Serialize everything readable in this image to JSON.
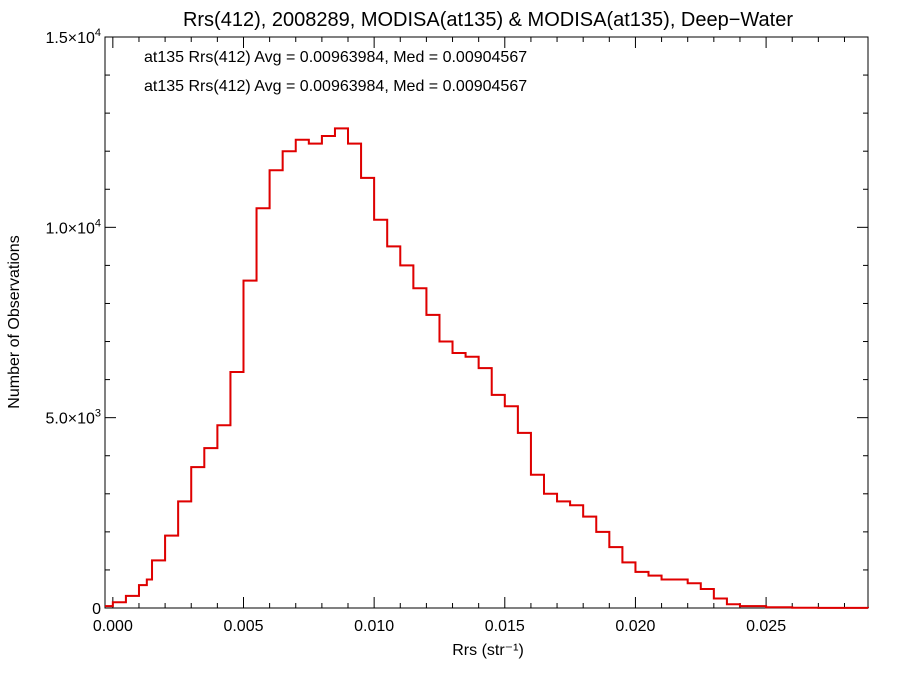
{
  "chart_data": {
    "type": "line",
    "title": "Rrs(412), 2008289, MODISA(at135) & MODISA(at135), Deep−Water",
    "xlabel": "Rrs (str⁻¹)",
    "ylabel": "Number of Observations",
    "xlim": [
      -0.0003,
      0.0289
    ],
    "ylim": [
      0,
      15000
    ],
    "x_ticks": [
      0.0,
      0.005,
      0.01,
      0.015,
      0.02,
      0.025
    ],
    "x_tick_labels": [
      "0.000",
      "0.005",
      "0.010",
      "0.015",
      "0.020",
      "0.025"
    ],
    "y_ticks": [
      0,
      5000,
      10000,
      15000
    ],
    "y_tick_labels": [
      {
        "mant": "0",
        "exp": ""
      },
      {
        "mant": "5.0×10",
        "exp": "3"
      },
      {
        "mant": "1.0×10",
        "exp": "4"
      },
      {
        "mant": "1.5×10",
        "exp": "4"
      }
    ],
    "grid": false,
    "annotations": [
      {
        "text": "at135 Rrs(412) Avg = 0.00963984, Med = 0.00904567",
        "color": "#000000"
      },
      {
        "text": "at135 Rrs(412) Avg = 0.00963984, Med = 0.00904567",
        "color": "#e00000"
      }
    ],
    "series": [
      {
        "color": "#000000",
        "x": [
          -0.0003,
          0.0,
          0.0005,
          0.001,
          0.0013,
          0.0015,
          0.002,
          0.0025,
          0.003,
          0.0035,
          0.004,
          0.0045,
          0.005,
          0.0055,
          0.006,
          0.0065,
          0.007,
          0.0075,
          0.008,
          0.0085,
          0.009,
          0.0095,
          0.01,
          0.0105,
          0.011,
          0.0115,
          0.012,
          0.0125,
          0.013,
          0.0135,
          0.014,
          0.0145,
          0.015,
          0.0155,
          0.016,
          0.0165,
          0.017,
          0.0175,
          0.018,
          0.0185,
          0.019,
          0.0195,
          0.02,
          0.0205,
          0.021,
          0.0215,
          0.022,
          0.0225,
          0.023,
          0.0235,
          0.024,
          0.025,
          0.026,
          0.027,
          0.0289
        ],
        "values": [
          50,
          150,
          320,
          600,
          750,
          1250,
          1900,
          2800,
          3700,
          4200,
          4800,
          6200,
          8600,
          10500,
          11500,
          12000,
          12300,
          12200,
          12400,
          12600,
          12200,
          11300,
          10200,
          9500,
          9000,
          8400,
          7700,
          7000,
          6700,
          6600,
          6300,
          5600,
          5300,
          4600,
          3500,
          3000,
          2800,
          2700,
          2400,
          2000,
          1600,
          1200,
          950,
          850,
          750,
          750,
          650,
          500,
          250,
          100,
          50,
          20,
          8,
          4,
          2
        ]
      },
      {
        "color": "#e00000",
        "x": [
          -0.0003,
          0.0,
          0.0005,
          0.001,
          0.0013,
          0.0015,
          0.002,
          0.0025,
          0.003,
          0.0035,
          0.004,
          0.0045,
          0.005,
          0.0055,
          0.006,
          0.0065,
          0.007,
          0.0075,
          0.008,
          0.0085,
          0.009,
          0.0095,
          0.01,
          0.0105,
          0.011,
          0.0115,
          0.012,
          0.0125,
          0.013,
          0.0135,
          0.014,
          0.0145,
          0.015,
          0.0155,
          0.016,
          0.0165,
          0.017,
          0.0175,
          0.018,
          0.0185,
          0.019,
          0.0195,
          0.02,
          0.0205,
          0.021,
          0.0215,
          0.022,
          0.0225,
          0.023,
          0.0235,
          0.024,
          0.025,
          0.026,
          0.027,
          0.0289
        ],
        "values": [
          50,
          150,
          320,
          600,
          750,
          1250,
          1900,
          2800,
          3700,
          4200,
          4800,
          6200,
          8600,
          10500,
          11500,
          12000,
          12300,
          12200,
          12400,
          12600,
          12200,
          11300,
          10200,
          9500,
          9000,
          8400,
          7700,
          7000,
          6700,
          6600,
          6300,
          5600,
          5300,
          4600,
          3500,
          3000,
          2800,
          2700,
          2400,
          2000,
          1600,
          1200,
          950,
          850,
          750,
          750,
          650,
          500,
          250,
          100,
          50,
          20,
          8,
          4,
          2
        ]
      }
    ]
  }
}
